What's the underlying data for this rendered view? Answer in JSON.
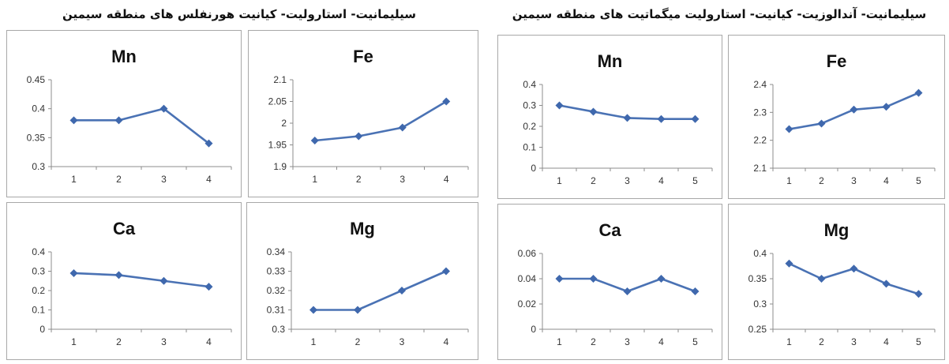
{
  "group_titles": {
    "left": "سیلیمانیت- استارولیت- کیانیت هورنفلس های منطقه سیمین",
    "right": "سیلیمانیت- آندالوزیت- کیانیت- استارولیت میگماتیت های منطقه سیمین"
  },
  "chart_data": [
    {
      "type": "line",
      "title": "Mn",
      "categories": [
        "1",
        "2",
        "3",
        "4"
      ],
      "values": [
        0.38,
        0.38,
        0.4,
        0.34
      ],
      "ylim": [
        0.3,
        0.45
      ],
      "yticks": [
        "0.3",
        "0.35",
        "0.4",
        "0.45"
      ],
      "grid": false,
      "xlabel": "",
      "ylabel": "",
      "color": "#4a72b4"
    },
    {
      "type": "line",
      "title": "Fe",
      "categories": [
        "1",
        "2",
        "3",
        "4"
      ],
      "values": [
        1.96,
        1.97,
        1.99,
        2.05
      ],
      "ylim": [
        1.9,
        2.1
      ],
      "yticks": [
        "1.9",
        "1.95",
        "2",
        "2.05",
        "2.1"
      ],
      "grid": false,
      "xlabel": "",
      "ylabel": "",
      "color": "#4a72b4"
    },
    {
      "type": "line",
      "title": "Ca",
      "categories": [
        "1",
        "2",
        "3",
        "4"
      ],
      "values": [
        0.29,
        0.28,
        0.25,
        0.22
      ],
      "ylim": [
        0,
        0.4
      ],
      "yticks": [
        "0",
        "0.1",
        "0.2",
        "0.3",
        "0.4"
      ],
      "grid": false,
      "xlabel": "",
      "ylabel": "",
      "color": "#4a72b4"
    },
    {
      "type": "line",
      "title": "Mg",
      "categories": [
        "1",
        "2",
        "3",
        "4"
      ],
      "values": [
        0.31,
        0.31,
        0.32,
        0.33
      ],
      "ylim": [
        0.3,
        0.34
      ],
      "yticks": [
        "0.3",
        "0.31",
        "0.32",
        "0.33",
        "0.34"
      ],
      "grid": false,
      "xlabel": "",
      "ylabel": "",
      "color": "#4a72b4"
    },
    {
      "type": "line",
      "title": "Mn",
      "categories": [
        "1",
        "2",
        "3",
        "4",
        "5"
      ],
      "values": [
        0.3,
        0.27,
        0.24,
        0.235,
        0.235
      ],
      "ylim": [
        0,
        0.4
      ],
      "yticks": [
        "0",
        "0.1",
        "0.2",
        "0.3",
        "0.4"
      ],
      "grid": false,
      "xlabel": "",
      "ylabel": "",
      "color": "#4a72b4"
    },
    {
      "type": "line",
      "title": "Fe",
      "categories": [
        "1",
        "2",
        "3",
        "4",
        "5"
      ],
      "values": [
        2.24,
        2.26,
        2.31,
        2.32,
        2.37
      ],
      "ylim": [
        2.1,
        2.4
      ],
      "yticks": [
        "2.1",
        "2.2",
        "2.3",
        "2.4"
      ],
      "grid": false,
      "xlabel": "",
      "ylabel": "",
      "color": "#4a72b4"
    },
    {
      "type": "line",
      "title": "Ca",
      "categories": [
        "1",
        "2",
        "3",
        "4",
        "5"
      ],
      "values": [
        0.04,
        0.04,
        0.03,
        0.04,
        0.03
      ],
      "ylim": [
        0,
        0.06
      ],
      "yticks": [
        "0",
        "0.02",
        "0.04",
        "0.06"
      ],
      "grid": false,
      "xlabel": "",
      "ylabel": "",
      "color": "#4a72b4"
    },
    {
      "type": "line",
      "title": "Mg",
      "categories": [
        "1",
        "2",
        "3",
        "4",
        "5"
      ],
      "values": [
        0.38,
        0.35,
        0.37,
        0.34,
        0.32
      ],
      "ylim": [
        0.25,
        0.4
      ],
      "yticks": [
        "0.25",
        "0.3",
        "0.35",
        "0.4"
      ],
      "grid": false,
      "xlabel": "",
      "ylabel": "",
      "color": "#4a72b4"
    }
  ]
}
